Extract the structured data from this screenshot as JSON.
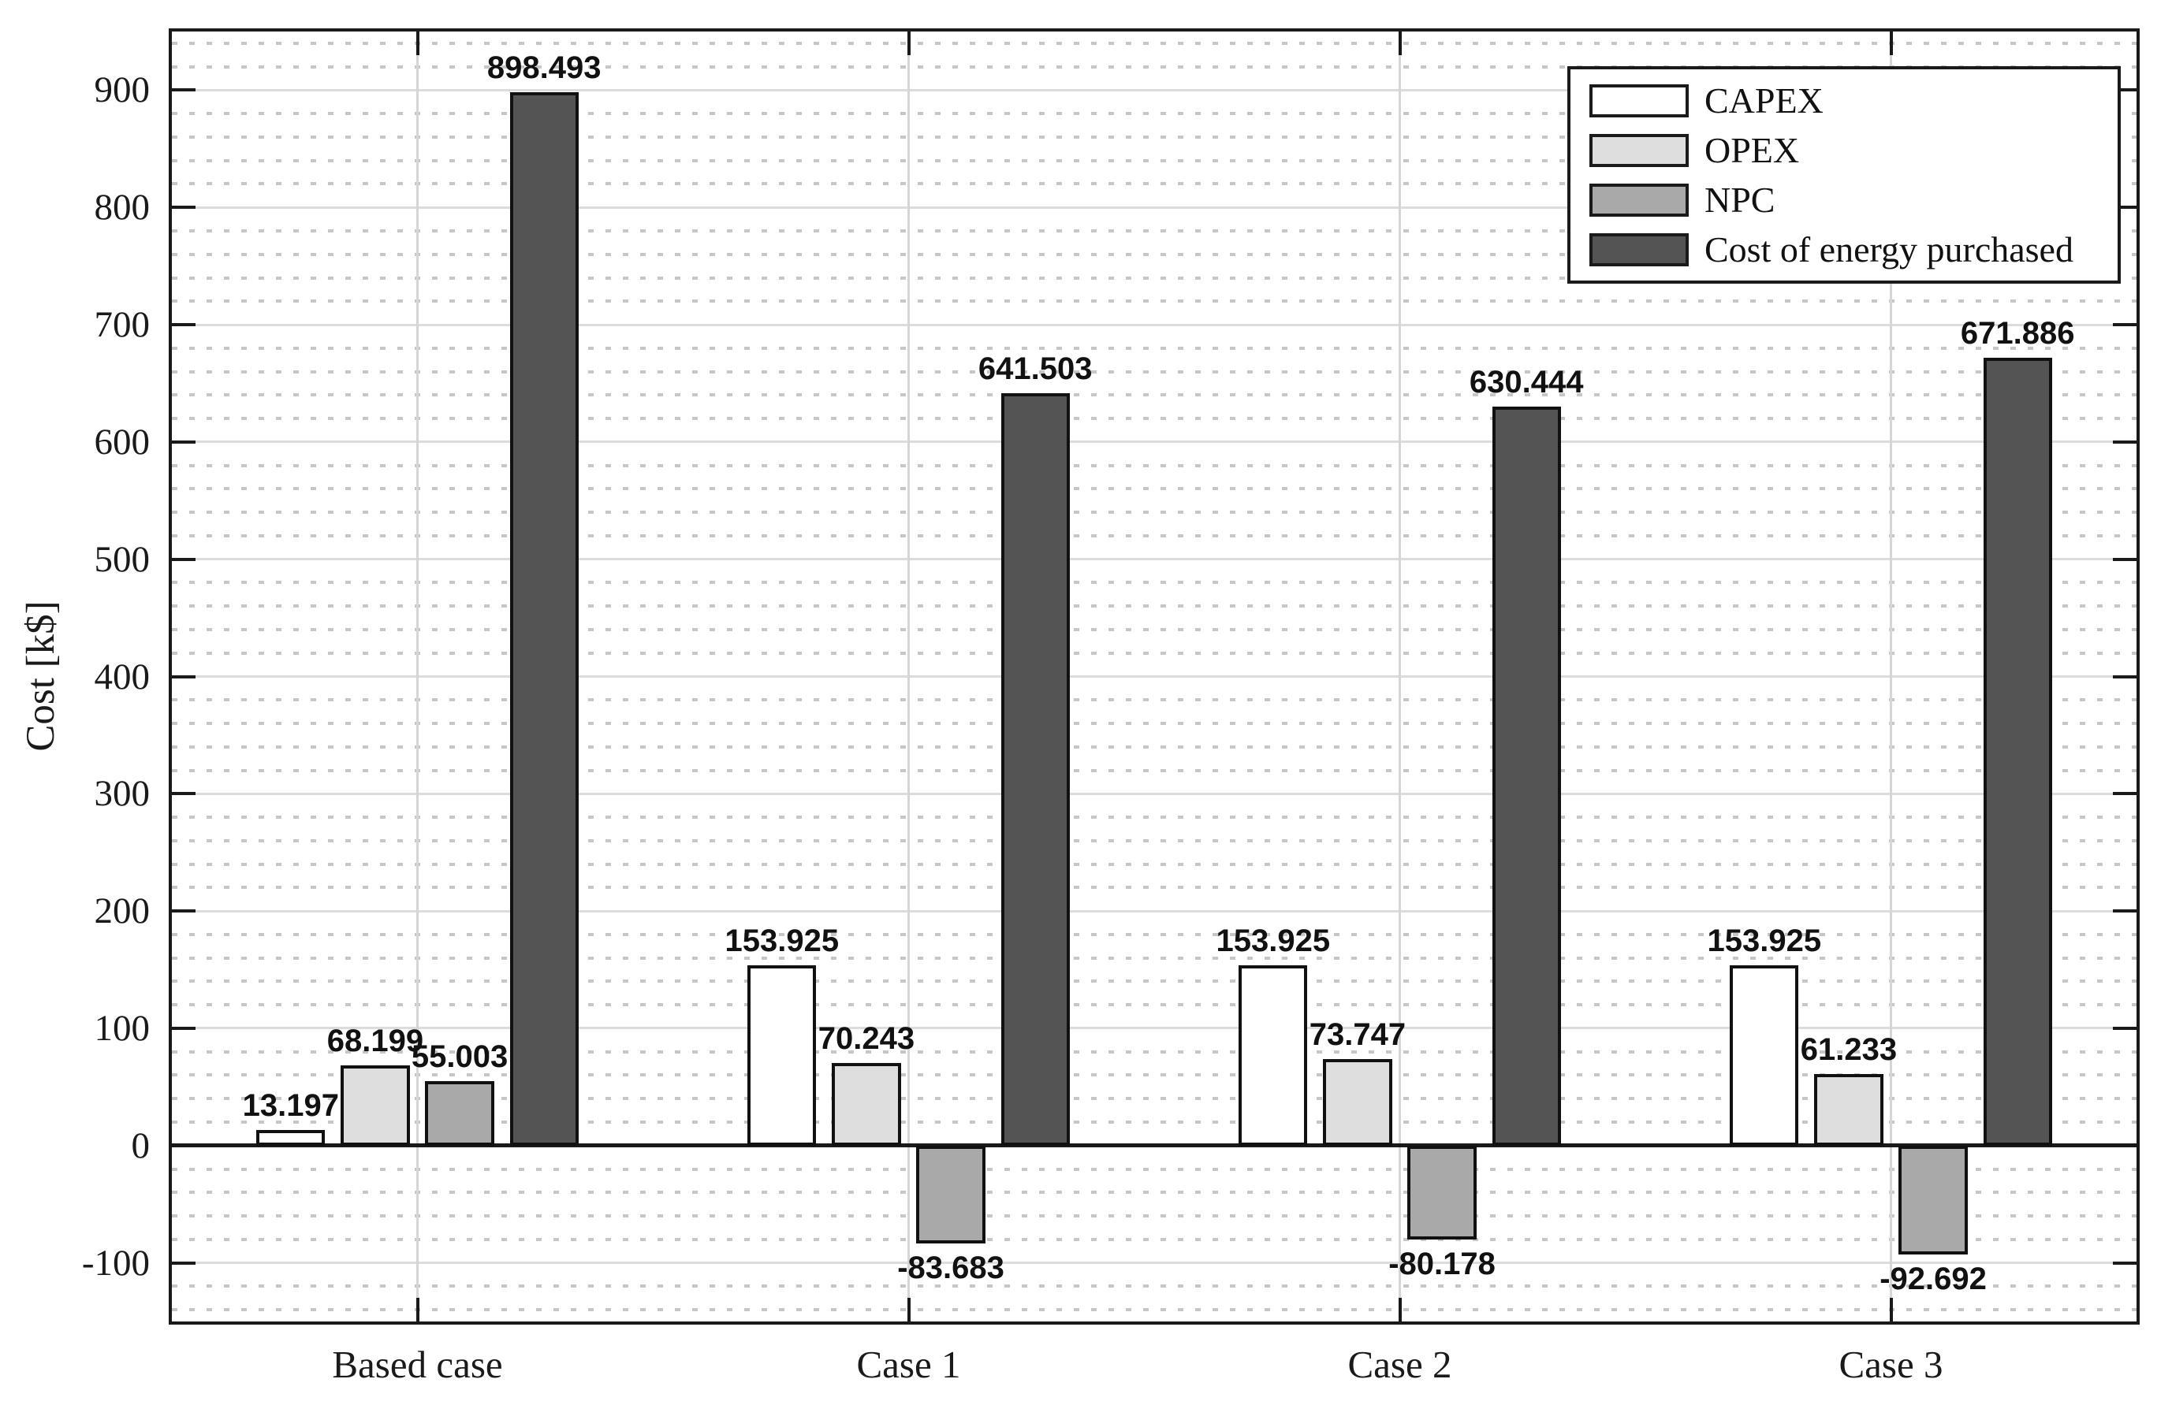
{
  "chart_data": {
    "type": "bar",
    "title": "",
    "xlabel": "",
    "ylabel": "Cost [k$]",
    "categories": [
      "Based case",
      "Case 1",
      "Case 2",
      "Case 3"
    ],
    "series": [
      {
        "name": "CAPEX",
        "color": "#ffffff",
        "values": [
          13.197,
          153.925,
          153.925,
          153.925
        ]
      },
      {
        "name": "OPEX",
        "color": "#dedede",
        "values": [
          68.199,
          70.243,
          73.747,
          61.233
        ]
      },
      {
        "name": "NPC",
        "color": "#a9a9a9",
        "values": [
          55.003,
          -83.683,
          -80.178,
          -92.692
        ]
      },
      {
        "name": "Cost of energy purchased",
        "color": "#545454",
        "values": [
          898.493,
          641.503,
          630.444,
          671.886
        ]
      }
    ],
    "bar_label_decimals": 3,
    "ylim": [
      -150,
      950
    ],
    "yticks": [
      -100,
      0,
      100,
      200,
      300,
      400,
      500,
      600,
      700,
      800,
      900
    ],
    "minor_grid_step": 20,
    "grid": "major-solid + minor-dotted",
    "legend_position": "top-right",
    "colors": {
      "spine": "#1a1a1a",
      "major_grid": "#dcdcdc",
      "minor_grid": "#c6c6c6",
      "zero_line": "#1a1a1a",
      "bar_edge": "#111111",
      "text": "#1a1a1a"
    }
  }
}
